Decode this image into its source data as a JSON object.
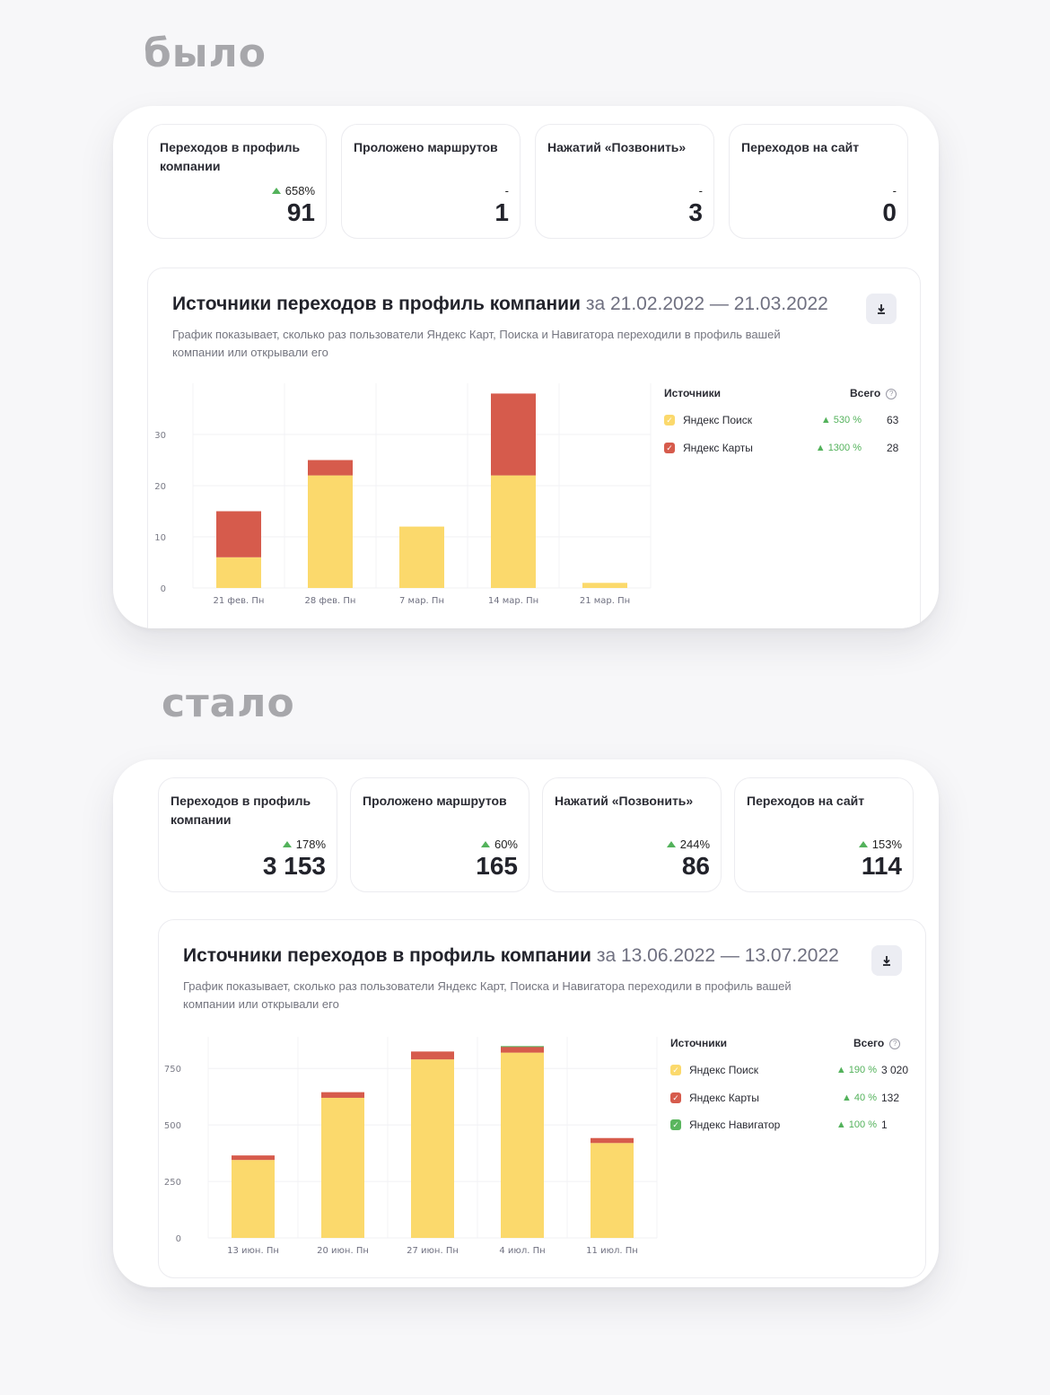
{
  "before": {
    "label": "было",
    "metrics": [
      {
        "label": "Переходов в профиль компании",
        "delta": "658%",
        "value": "91",
        "has_delta": true
      },
      {
        "label": "Проложено маршрутов",
        "delta": "-",
        "value": "1",
        "has_delta": false
      },
      {
        "label": "Нажатий «Позвонить»",
        "delta": "-",
        "value": "3",
        "has_delta": false
      },
      {
        "label": "Переходов на сайт",
        "delta": "-",
        "value": "0",
        "has_delta": false
      }
    ],
    "chart": {
      "title": "Источники переходов в профиль компании",
      "period": "за 21.02.2022 — 21.03.2022",
      "description": "График показывает, сколько раз пользователи Яндекс Карт, Поиска и Навигатора переходили в профиль вашей компании или открывали его",
      "legend": {
        "sources_header": "Источники",
        "total_header": "Всего",
        "items": [
          {
            "name": "Яндекс Поиск",
            "delta": "530 %",
            "total": "63",
            "color": "#fbd96c"
          },
          {
            "name": "Яндекс Карты",
            "delta": "1300 %",
            "total": "28",
            "color": "#d65b4c"
          }
        ]
      }
    },
    "chart_data": {
      "type": "bar",
      "stacked": true,
      "categories": [
        "21 фев. Пн",
        "28 фев. Пн",
        "7 мар. Пн",
        "14 мар. Пн",
        "21 мар. Пн"
      ],
      "series": [
        {
          "name": "Яндекс Поиск",
          "values": [
            6,
            22,
            12,
            22,
            1
          ],
          "color": "#fbd96c"
        },
        {
          "name": "Яндекс Карты",
          "values": [
            9,
            3,
            0,
            16,
            0
          ],
          "color": "#d65b4c"
        }
      ],
      "yticks": [
        0,
        10,
        20,
        30
      ],
      "ylim": [
        0,
        40
      ],
      "grid": true
    }
  },
  "after": {
    "label": "стало",
    "metrics": [
      {
        "label": "Переходов в профиль компании",
        "delta": "178%",
        "value": "3 153",
        "has_delta": true
      },
      {
        "label": "Проложено маршрутов",
        "delta": "60%",
        "value": "165",
        "has_delta": true
      },
      {
        "label": "Нажатий «Позвонить»",
        "delta": "244%",
        "value": "86",
        "has_delta": true
      },
      {
        "label": "Переходов на сайт",
        "delta": "153%",
        "value": "114",
        "has_delta": true
      }
    ],
    "chart": {
      "title": "Источники переходов в профиль компании",
      "period": "за 13.06.2022 — 13.07.2022",
      "description": "График показывает, сколько раз пользователи Яндекс Карт, Поиска и Навигатора переходили в профиль вашей компании или открывали его",
      "legend": {
        "sources_header": "Источники",
        "total_header": "Всего",
        "items": [
          {
            "name": "Яндекс Поиск",
            "delta": "190 %",
            "total": "3 020",
            "color": "#fbd96c"
          },
          {
            "name": "Яндекс Карты",
            "delta": "40 %",
            "total": "132",
            "color": "#d65b4c"
          },
          {
            "name": "Яндекс Навигатор",
            "delta": "100 %",
            "total": "1",
            "color": "#5ab65e"
          }
        ]
      }
    },
    "chart_data": {
      "type": "bar",
      "stacked": true,
      "categories": [
        "13 июн. Пн",
        "20 июн. Пн",
        "27 июн. Пн",
        "4 июл. Пн",
        "11 июл. Пн"
      ],
      "series": [
        {
          "name": "Яндекс Поиск",
          "values": [
            345,
            620,
            790,
            820,
            420
          ],
          "color": "#fbd96c"
        },
        {
          "name": "Яндекс Карты",
          "values": [
            20,
            25,
            35,
            28,
            22
          ],
          "color": "#d65b4c"
        },
        {
          "name": "Яндекс Навигатор",
          "values": [
            0,
            0,
            0,
            1,
            0
          ],
          "color": "#5ab65e"
        }
      ],
      "yticks": [
        0,
        250,
        500,
        750
      ],
      "ylim": [
        0,
        890
      ],
      "grid": true
    }
  }
}
